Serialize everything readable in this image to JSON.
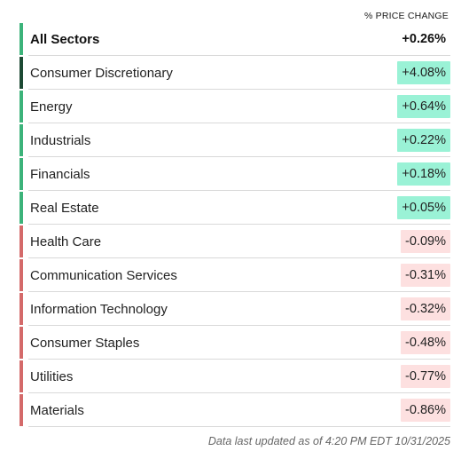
{
  "header": {
    "column_label": "% PRICE CHANGE"
  },
  "total": {
    "name": "All Sectors",
    "value": "+0.26%"
  },
  "sectors": [
    {
      "name": "Consumer Discretionary",
      "value": "+4.08%",
      "direction": "up",
      "emphasis": "strong"
    },
    {
      "name": "Energy",
      "value": "+0.64%",
      "direction": "up"
    },
    {
      "name": "Industrials",
      "value": "+0.22%",
      "direction": "up"
    },
    {
      "name": "Financials",
      "value": "+0.18%",
      "direction": "up"
    },
    {
      "name": "Real Estate",
      "value": "+0.05%",
      "direction": "up"
    },
    {
      "name": "Health Care",
      "value": "-0.09%",
      "direction": "down"
    },
    {
      "name": "Communication Services",
      "value": "-0.31%",
      "direction": "down"
    },
    {
      "name": "Information Technology",
      "value": "-0.32%",
      "direction": "down"
    },
    {
      "name": "Consumer Staples",
      "value": "-0.48%",
      "direction": "down"
    },
    {
      "name": "Utilities",
      "value": "-0.77%",
      "direction": "down"
    },
    {
      "name": "Materials",
      "value": "-0.86%",
      "direction": "down"
    }
  ],
  "footer": {
    "updated_text": "Data last updated as of 4:20 PM EDT 10/31/2025"
  },
  "colors": {
    "positive_bar": "#3cb37a",
    "strong_positive_bar": "#1d4a34",
    "negative_bar": "#d46a6a",
    "positive_badge": "#9af2d6",
    "negative_badge": "#fde0e0"
  }
}
